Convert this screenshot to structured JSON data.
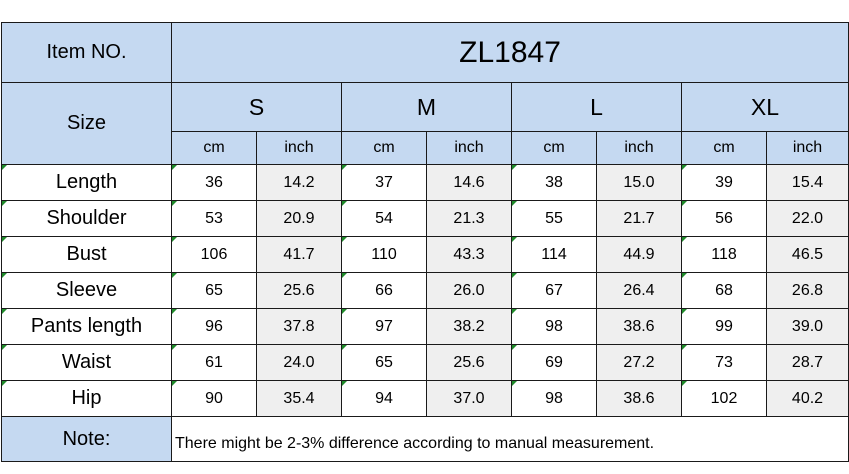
{
  "item_label": "Item NO.",
  "item_number": "ZL1847",
  "size_label": "Size",
  "sizes": [
    "S",
    "M",
    "L",
    "XL"
  ],
  "units": [
    "cm",
    "inch"
  ],
  "rows": [
    {
      "name": "Length",
      "values": [
        "36",
        "14.2",
        "37",
        "14.6",
        "38",
        "15.0",
        "39",
        "15.4"
      ]
    },
    {
      "name": "Shoulder",
      "values": [
        "53",
        "20.9",
        "54",
        "21.3",
        "55",
        "21.7",
        "56",
        "22.0"
      ]
    },
    {
      "name": "Bust",
      "values": [
        "106",
        "41.7",
        "110",
        "43.3",
        "114",
        "44.9",
        "118",
        "46.5"
      ]
    },
    {
      "name": "Sleeve",
      "values": [
        "65",
        "25.6",
        "66",
        "26.0",
        "67",
        "26.4",
        "68",
        "26.8"
      ]
    },
    {
      "name": "Pants length",
      "values": [
        "96",
        "37.8",
        "97",
        "38.2",
        "98",
        "38.6",
        "99",
        "39.0"
      ]
    },
    {
      "name": "Waist",
      "values": [
        "61",
        "24.0",
        "65",
        "25.6",
        "69",
        "27.2",
        "73",
        "28.7"
      ]
    },
    {
      "name": "Hip",
      "values": [
        "90",
        "35.4",
        "94",
        "37.0",
        "98",
        "38.6",
        "102",
        "40.2"
      ]
    }
  ],
  "note_label": "Note:",
  "note_text": "There might be 2-3% difference according to manual measurement.",
  "colors": {
    "header_blue": "#c5d9f1",
    "inch_grey": "#efefef",
    "corner_marker": "#1f8a2a"
  }
}
